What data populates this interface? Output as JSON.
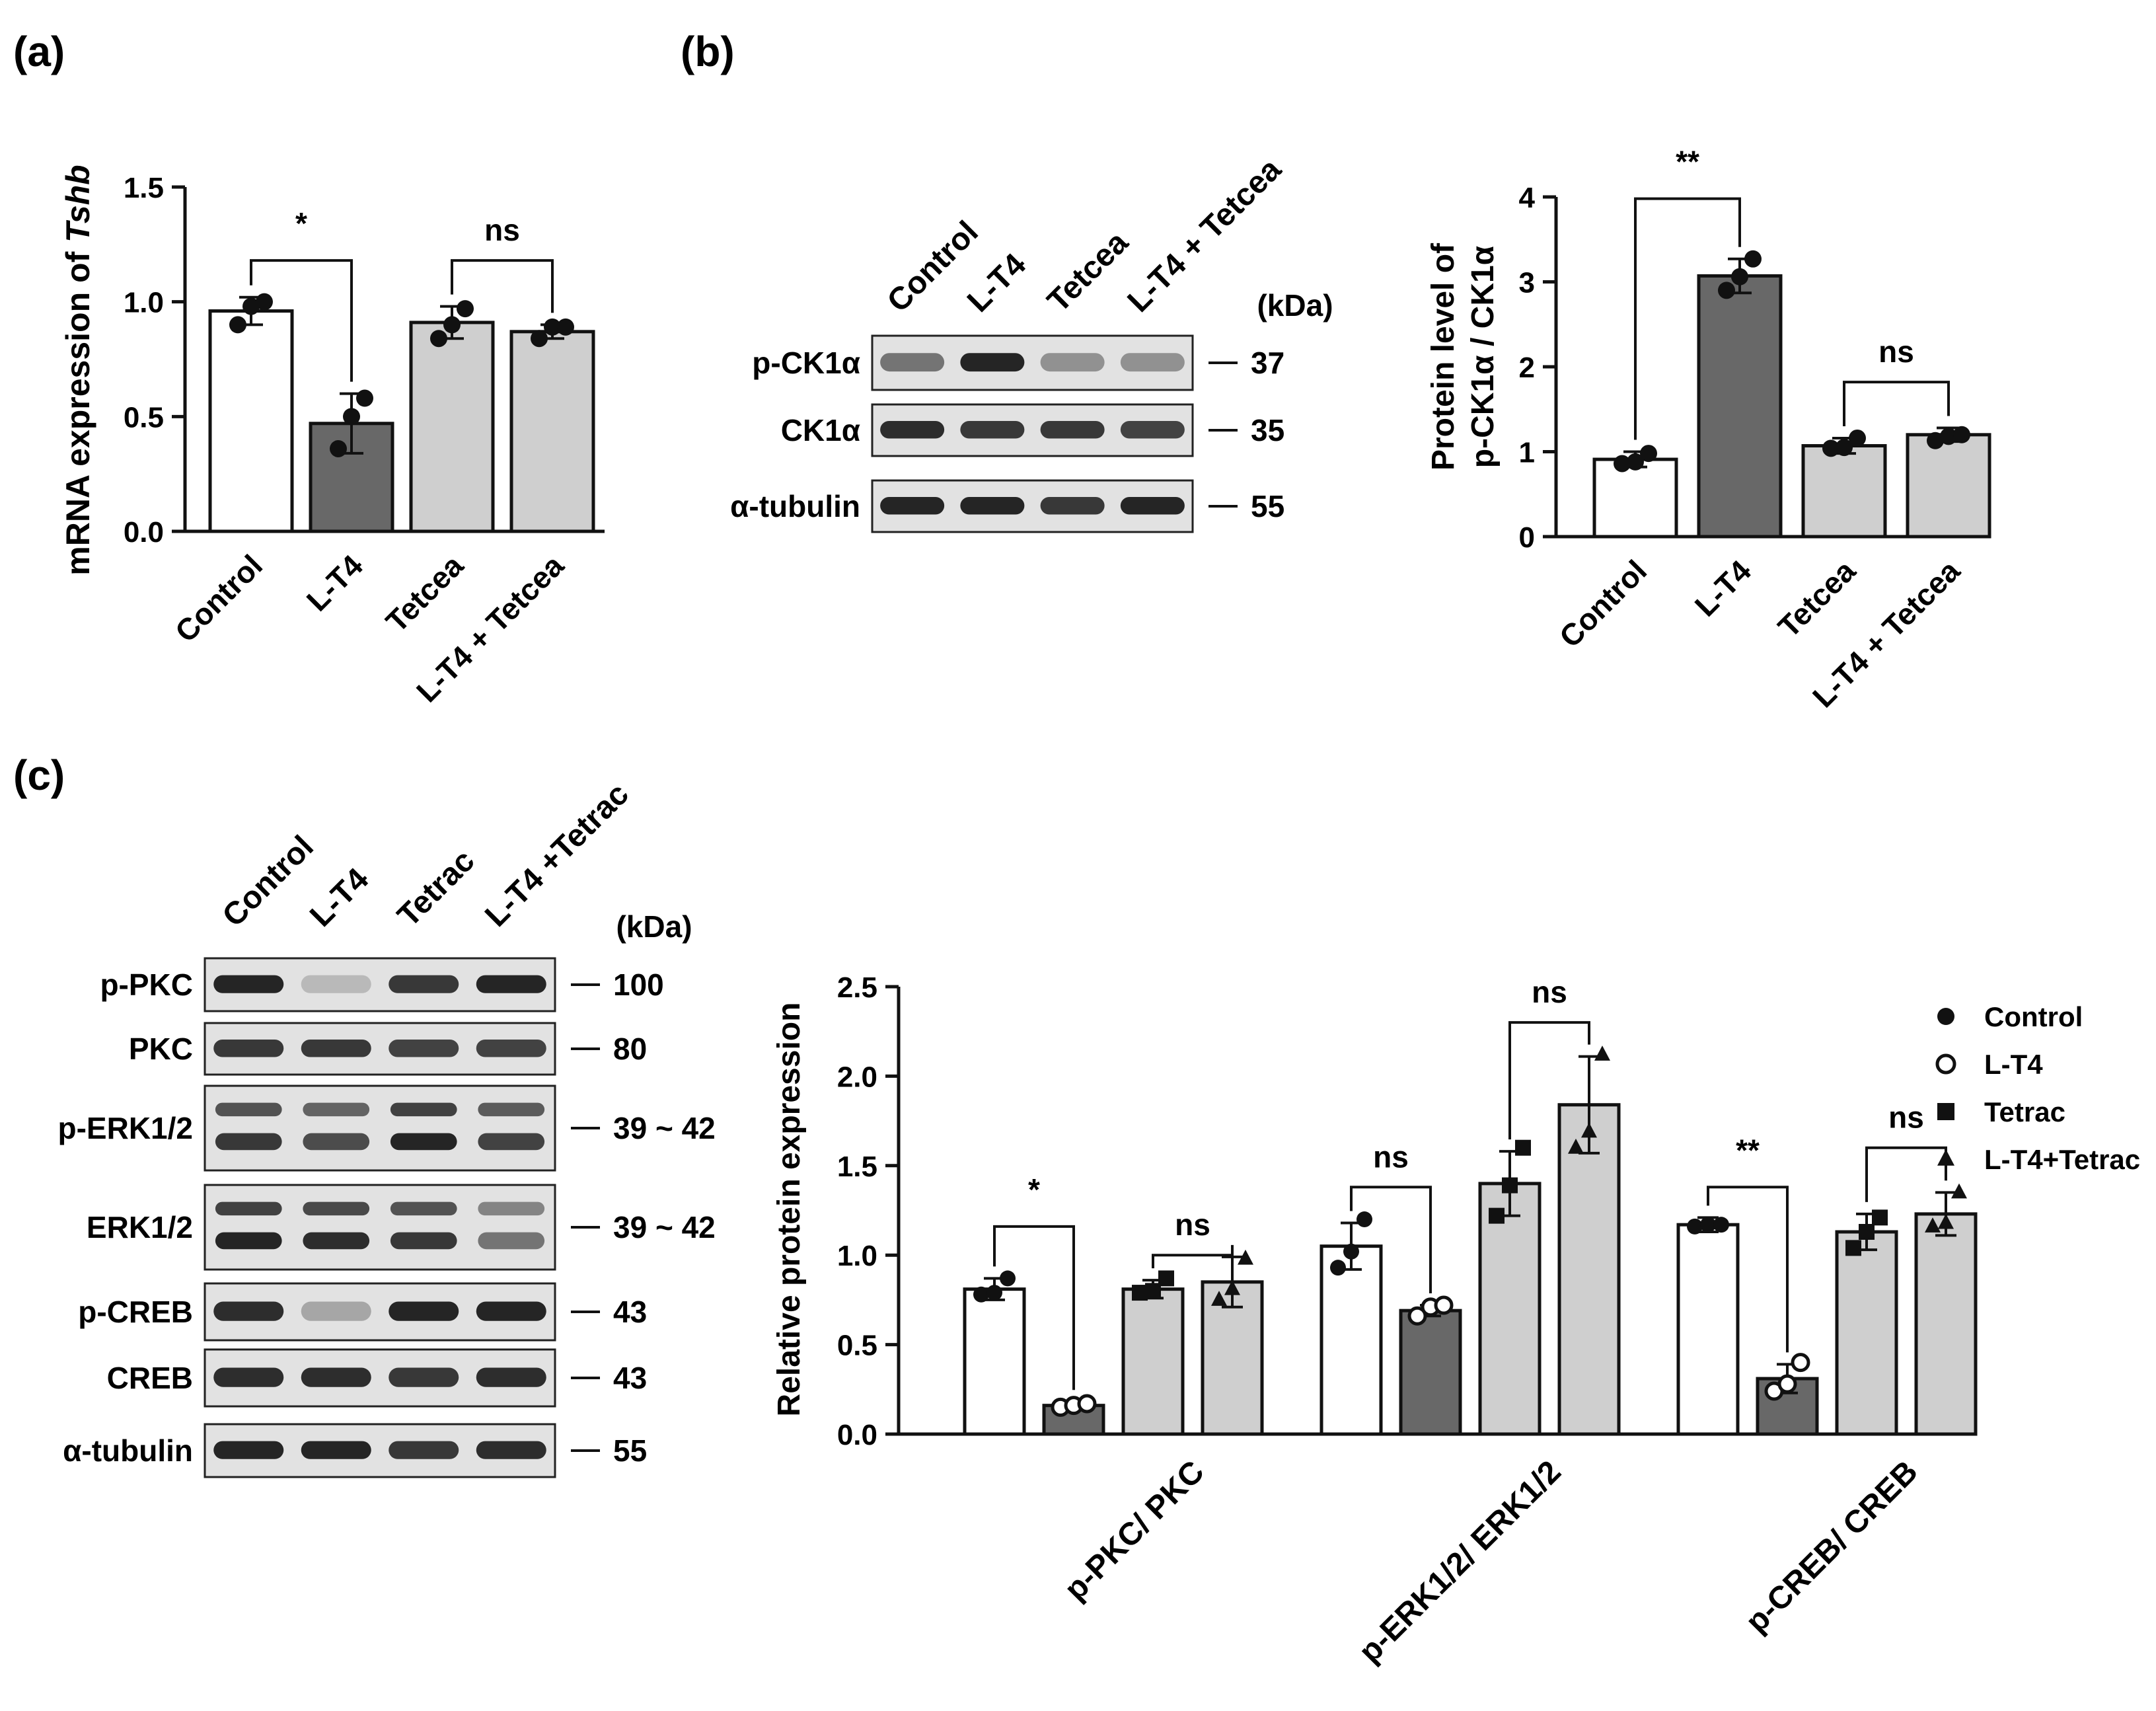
{
  "panels": {
    "a": {
      "letter": "(a)"
    },
    "b": {
      "letter": "(b)"
    },
    "c": {
      "letter": "(c)"
    }
  },
  "colors": {
    "white_bar": "#ffffff",
    "dark_bar": "#686868",
    "light_bar": "#cfcfcf",
    "axis": "#111111",
    "blot_bg": "#e2e2e2",
    "band": "#1a1a1a"
  },
  "chart_data": [
    {
      "panel": "a",
      "type": "bar",
      "ylabel_prefix": "mRNA expression of ",
      "ylabel_gene": "Tshb",
      "ylim": [
        0,
        1.5
      ],
      "yticks": [
        "0.0",
        "0.5",
        "1.0",
        "1.5"
      ],
      "categories": [
        "Control",
        "L-T4",
        "Tetcea",
        "L-T4 + Tetcea"
      ],
      "values": [
        0.96,
        0.47,
        0.91,
        0.87
      ],
      "errors": [
        0.06,
        0.13,
        0.07,
        0.03
      ],
      "points": [
        [
          0.9,
          0.98,
          1.0
        ],
        [
          0.36,
          0.5,
          0.58
        ],
        [
          0.84,
          0.9,
          0.97
        ],
        [
          0.84,
          0.89,
          0.89
        ]
      ],
      "fills": [
        "white",
        "dark",
        "light",
        "light"
      ],
      "brackets": [
        {
          "from": 0,
          "to": 1,
          "level": 1.18,
          "label": "*"
        },
        {
          "from": 2,
          "to": 3,
          "level": 1.18,
          "label": "ns"
        }
      ]
    },
    {
      "panel": "b",
      "type": "bar",
      "ylabel_lines": [
        "Protein level of",
        "p-CK1α / CK1α"
      ],
      "ylim": [
        0,
        4
      ],
      "yticks": [
        "0",
        "1",
        "2",
        "3",
        "4"
      ],
      "categories": [
        "Control",
        "L-T4",
        "Tetcea",
        "L-T4 + Tetcea"
      ],
      "values": [
        0.91,
        3.07,
        1.07,
        1.2
      ],
      "errors": [
        0.09,
        0.2,
        0.09,
        0.08
      ],
      "points": [
        [
          0.86,
          0.88,
          0.98
        ],
        [
          2.9,
          3.06,
          3.27
        ],
        [
          1.04,
          1.05,
          1.16
        ],
        [
          1.13,
          1.18,
          1.2
        ]
      ],
      "fills": [
        "white",
        "dark",
        "light",
        "light"
      ],
      "brackets": [
        {
          "from": 0,
          "to": 1,
          "level": 3.98,
          "label": "**"
        },
        {
          "from": 2,
          "to": 3,
          "level": 1.82,
          "label": "ns"
        }
      ]
    },
    {
      "panel": "c",
      "type": "bar",
      "ylabel": "Relative protein expression",
      "ylim": [
        0,
        2.5
      ],
      "yticks": [
        "0.0",
        "0.5",
        "1.0",
        "1.5",
        "2.0",
        "2.5"
      ],
      "categories": [
        "p-PKC/ PKC",
        "p-ERK1/2/ ERK1/2",
        "p-CREB/ CREB"
      ],
      "series": [
        {
          "name": "Control",
          "marker": "circle-filled",
          "fill": "white",
          "values": [
            0.81,
            1.05,
            1.17
          ],
          "errors": [
            0.06,
            0.13,
            0.04
          ],
          "points": [
            [
              0.78,
              0.79,
              0.87
            ],
            [
              0.93,
              1.02,
              1.2
            ],
            [
              1.16,
              1.17,
              1.17
            ]
          ]
        },
        {
          "name": "L-T4",
          "marker": "circle-open",
          "fill": "dark",
          "values": [
            0.16,
            0.69,
            0.31
          ],
          "errors": [
            0.02,
            0.03,
            0.08
          ],
          "points": [
            [
              0.15,
              0.16,
              0.17
            ],
            [
              0.66,
              0.71,
              0.72
            ],
            [
              0.24,
              0.28,
              0.4
            ]
          ]
        },
        {
          "name": "Tetrac",
          "marker": "square",
          "fill": "light",
          "values": [
            0.81,
            1.4,
            1.13
          ],
          "errors": [
            0.05,
            0.18,
            0.1
          ],
          "points": [
            [
              0.79,
              0.8,
              0.87
            ],
            [
              1.22,
              1.39,
              1.6
            ],
            [
              1.04,
              1.13,
              1.21
            ]
          ]
        },
        {
          "name": "L-T4+Tetrac",
          "marker": "triangle",
          "fill": "light",
          "values": [
            0.85,
            1.84,
            1.23
          ],
          "errors": [
            0.14,
            0.27,
            0.12
          ],
          "points": [
            [
              0.75,
              0.81,
              0.98
            ],
            [
              1.6,
              1.69,
              2.12
            ],
            [
              1.16,
              1.18,
              1.35
            ]
          ]
        }
      ],
      "legend_position": "top-right",
      "brackets": [
        {
          "group": 0,
          "from": 0,
          "to": 1,
          "level": 1.16,
          "label": "*"
        },
        {
          "group": 0,
          "from": 2,
          "to": 3,
          "level": 1.0,
          "label": "ns"
        },
        {
          "group": 1,
          "from": 0,
          "to": 1,
          "level": 1.38,
          "label": "ns"
        },
        {
          "group": 1,
          "from": 2,
          "to": 3,
          "level": 2.3,
          "label": "ns"
        },
        {
          "group": 2,
          "from": 0,
          "to": 1,
          "level": 1.38,
          "label": "**"
        },
        {
          "group": 2,
          "from": 2,
          "to": 3,
          "level": 1.6,
          "label": "ns"
        }
      ]
    }
  ],
  "blots": {
    "b": {
      "lanes": [
        "Control",
        "L-T4",
        "Tetcea",
        "L-T4 + Tetcea"
      ],
      "unit": "(kDa)",
      "rows": [
        {
          "label": "p-CK1α",
          "kda": "37",
          "intensity": [
            0.55,
            0.95,
            0.4,
            0.4
          ],
          "double": false
        },
        {
          "label": "CK1α",
          "kda": "35",
          "intensity": [
            0.9,
            0.85,
            0.85,
            0.8
          ],
          "double": false
        },
        {
          "label": "α-tubulin",
          "kda": "55",
          "intensity": [
            0.95,
            0.95,
            0.85,
            0.95
          ],
          "double": false
        }
      ]
    },
    "c": {
      "lanes": [
        "Control",
        "L-T4",
        "Tetrac",
        "L-T4 +Tetrac"
      ],
      "unit": "(kDa)",
      "rows": [
        {
          "label": "p-PKC",
          "kda": "100",
          "intensity": [
            0.95,
            0.2,
            0.85,
            0.95
          ],
          "double": false
        },
        {
          "label": "PKC",
          "kda": "80",
          "intensity": [
            0.85,
            0.85,
            0.8,
            0.8
          ],
          "double": false
        },
        {
          "label": "p-ERK1/2",
          "kda": "39 ~ 42",
          "intensity": [
            0.85,
            0.75,
            0.95,
            0.8
          ],
          "double": true
        },
        {
          "label": "ERK1/2",
          "kda": "39 ~ 42",
          "intensity": [
            0.95,
            0.9,
            0.85,
            0.55
          ],
          "double": true
        },
        {
          "label": "p-CREB",
          "kda": "43",
          "intensity": [
            0.9,
            0.3,
            0.95,
            0.95
          ],
          "double": false
        },
        {
          "label": "CREB",
          "kda": "43",
          "intensity": [
            0.9,
            0.9,
            0.85,
            0.9
          ],
          "double": false
        },
        {
          "label": "α-tubulin",
          "kda": "55",
          "intensity": [
            0.95,
            0.95,
            0.85,
            0.9
          ],
          "double": false
        }
      ]
    }
  }
}
